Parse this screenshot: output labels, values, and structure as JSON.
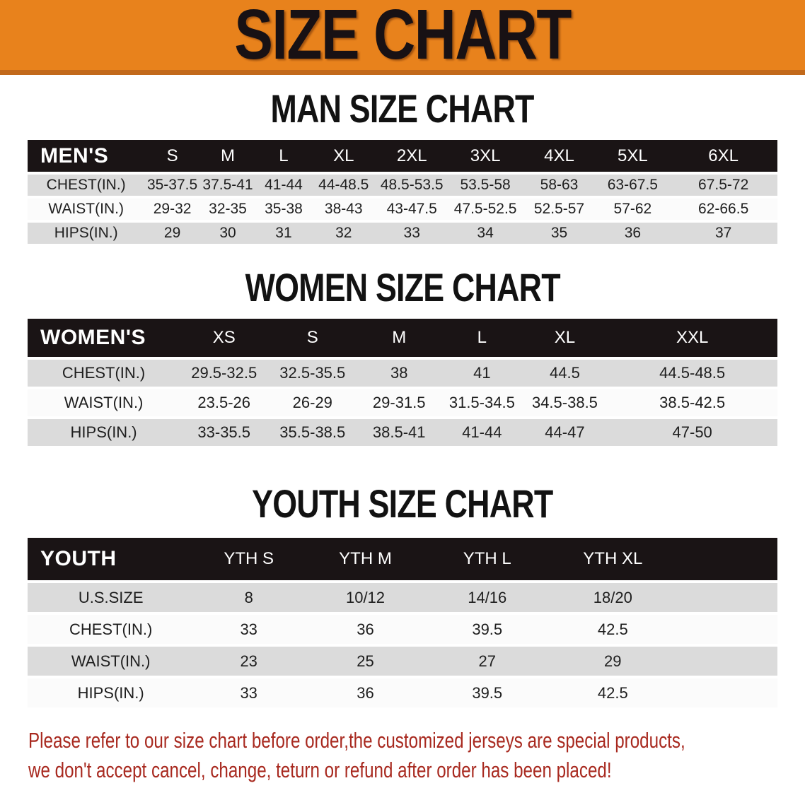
{
  "banner": {
    "title": "SIZE CHART"
  },
  "colors": {
    "banner_orange": "#E8821C",
    "banner_edge": "#C2691B",
    "table_header_black": "#1A1415",
    "row_stripe_gray": "#DBDBDB",
    "row_stripe_white": "#FBFBFB",
    "disclaimer_red": "#A8291F"
  },
  "chart_data": [
    {
      "type": "table",
      "title": "MAN SIZE CHART",
      "corner_label": "MEN'S",
      "columns": [
        "S",
        "M",
        "L",
        "XL",
        "2XL",
        "3XL",
        "4XL",
        "5XL",
        "6XL"
      ],
      "rows": [
        {
          "label": "CHEST(IN.)",
          "values": [
            "35-37.5",
            "37.5-41",
            "41-44",
            "44-48.5",
            "48.5-53.5",
            "53.5-58",
            "58-63",
            "63-67.5",
            "67.5-72"
          ]
        },
        {
          "label": "WAIST(IN.)",
          "values": [
            "29-32",
            "32-35",
            "35-38",
            "38-43",
            "43-47.5",
            "47.5-52.5",
            "52.5-57",
            "57-62",
            "62-66.5"
          ]
        },
        {
          "label": "HIPS(IN.)",
          "values": [
            "29",
            "30",
            "31",
            "32",
            "33",
            "34",
            "35",
            "36",
            "37"
          ]
        }
      ]
    },
    {
      "type": "table",
      "title": "WOMEN SIZE CHART",
      "corner_label": "WOMEN'S",
      "columns": [
        "XS",
        "S",
        "M",
        "L",
        "XL",
        "XXL"
      ],
      "rows": [
        {
          "label": "CHEST(IN.)",
          "values": [
            "29.5-32.5",
            "32.5-35.5",
            "38",
            "41",
            "44.5",
            "44.5-48.5"
          ]
        },
        {
          "label": "WAIST(IN.)",
          "values": [
            "23.5-26",
            "26-29",
            "29-31.5",
            "31.5-34.5",
            "34.5-38.5",
            "38.5-42.5"
          ]
        },
        {
          "label": "HIPS(IN.)",
          "values": [
            "33-35.5",
            "35.5-38.5",
            "38.5-41",
            "41-44",
            "44-47",
            "47-50"
          ]
        }
      ]
    },
    {
      "type": "table",
      "title": "YOUTH SIZE CHART",
      "corner_label": "YOUTH",
      "columns": [
        "YTH S",
        "YTH M",
        "YTH L",
        "YTH XL"
      ],
      "rows": [
        {
          "label": "U.S.SIZE",
          "values": [
            "8",
            "10/12",
            "14/16",
            "18/20"
          ]
        },
        {
          "label": "CHEST(IN.)",
          "values": [
            "33",
            "36",
            "39.5",
            "42.5"
          ]
        },
        {
          "label": "WAIST(IN.)",
          "values": [
            "23",
            "25",
            "27",
            "29"
          ]
        },
        {
          "label": "HIPS(IN.)",
          "values": [
            "33",
            "36",
            "39.5",
            "42.5"
          ]
        }
      ]
    }
  ],
  "disclaimer": {
    "line1": "Please refer to our size chart before order,the customized jerseys are special products,",
    "line2": "we don't accept cancel, change, teturn or refund after order has been placed!"
  }
}
